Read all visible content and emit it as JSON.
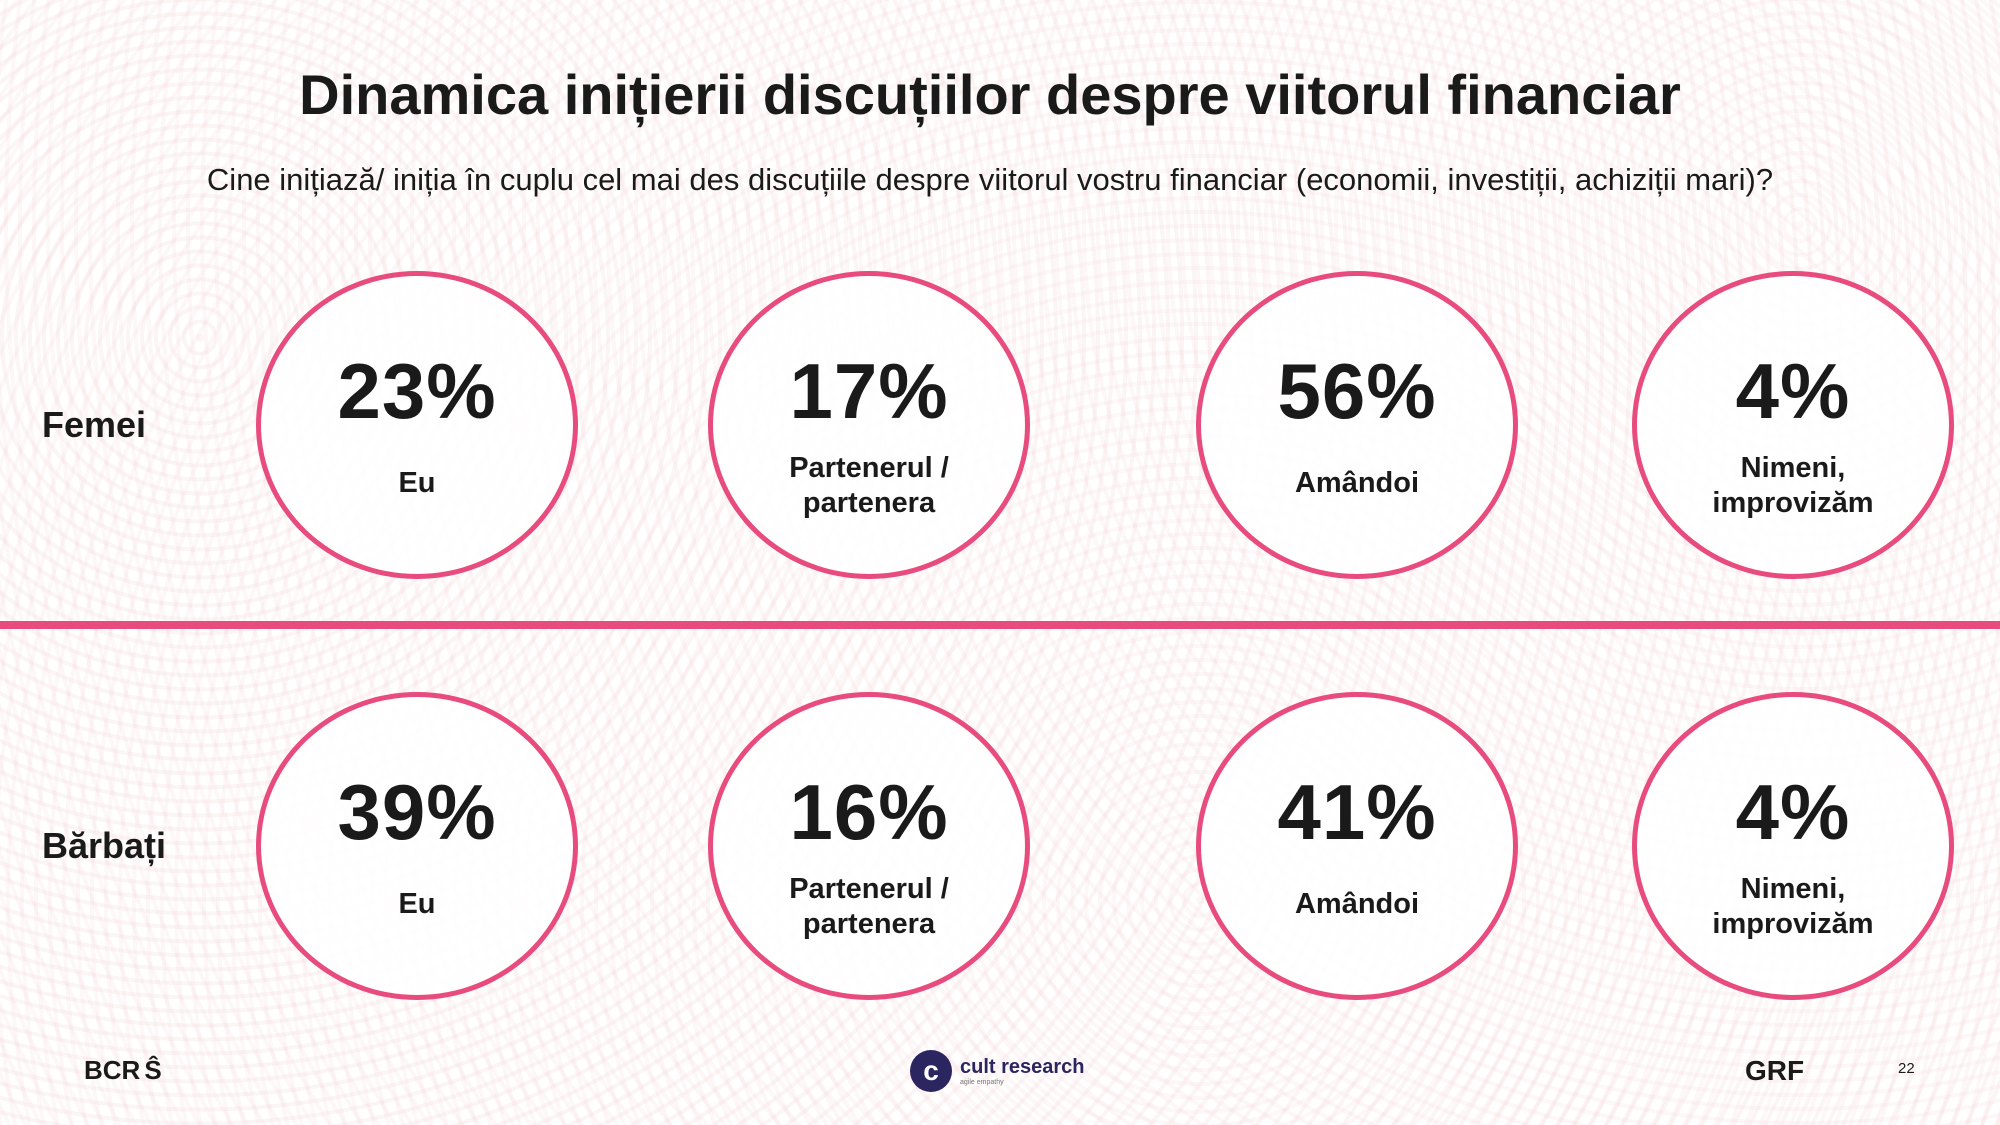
{
  "title": "Dinamica inițierii discuțiilor despre viitorul financiar",
  "subtitle": "Cine inițiază/ iniția în cuplu cel mai des discuțiile despre viitorul vostru financiar (economii, investiții, achiziții mari)?",
  "accent_color": "#e84b7e",
  "groups": [
    {
      "label": "Femei",
      "items": [
        {
          "value": "23%",
          "line1": "Eu",
          "line2": ""
        },
        {
          "value": "17%",
          "line1": "Partenerul /",
          "line2": "partenera"
        },
        {
          "value": "56%",
          "line1": "Amândoi",
          "line2": ""
        },
        {
          "value": "4%",
          "line1": "Nimeni,",
          "line2": "improvizăm"
        }
      ]
    },
    {
      "label": "Bărbați",
      "items": [
        {
          "value": "39%",
          "line1": "Eu",
          "line2": ""
        },
        {
          "value": "16%",
          "line1": "Partenerul /",
          "line2": "partenera"
        },
        {
          "value": "41%",
          "line1": "Amândoi",
          "line2": ""
        },
        {
          "value": "4%",
          "line1": "Nimeni,",
          "line2": "improvizăm"
        }
      ]
    }
  ],
  "footer": {
    "logo_left": "BCR",
    "logo_center": "cult research",
    "logo_center_tagline": "agile empathy",
    "logo_right": "GRF",
    "page_number": "22"
  }
}
